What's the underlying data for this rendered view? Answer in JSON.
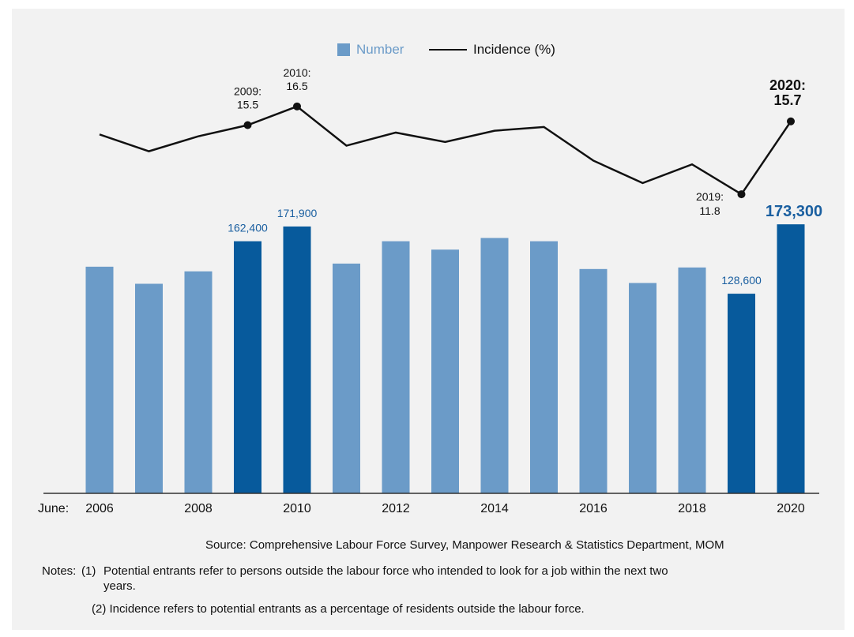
{
  "chart_data": {
    "type": "bar+line",
    "axis_prefix": "June:",
    "categories": [
      "2006",
      "2007",
      "2008",
      "2009",
      "2010",
      "2011",
      "2012",
      "2013",
      "2014",
      "2015",
      "2016",
      "2017",
      "2018",
      "2019",
      "2020"
    ],
    "tick_labels": [
      "2006",
      "",
      "2008",
      "",
      "2010",
      "",
      "2012",
      "",
      "2014",
      "",
      "2016",
      "",
      "2018",
      "",
      "2020"
    ],
    "series": [
      {
        "name": "Number",
        "type": "bar",
        "values": [
          146000,
          135000,
          143000,
          162400,
          171900,
          148000,
          162400,
          157000,
          164500,
          162400,
          144500,
          135500,
          145500,
          128600,
          173300
        ],
        "highlighted": [
          false,
          false,
          false,
          true,
          true,
          false,
          false,
          false,
          false,
          false,
          false,
          false,
          false,
          true,
          true
        ],
        "labels": [
          "",
          "",
          "",
          "162,400",
          "171,900",
          "",
          "",
          "",
          "",
          "",
          "",
          "",
          "",
          "128,600",
          "173,300"
        ]
      },
      {
        "name": "Incidence (%)",
        "type": "line",
        "values": [
          15.0,
          14.1,
          14.9,
          15.5,
          16.5,
          14.4,
          15.1,
          14.6,
          15.2,
          15.4,
          13.6,
          12.4,
          13.4,
          11.8,
          15.7
        ],
        "marked": [
          false,
          false,
          false,
          true,
          true,
          false,
          false,
          false,
          false,
          false,
          false,
          false,
          false,
          true,
          true
        ],
        "labels": [
          [],
          [],
          [],
          [
            "2009:",
            "15.5"
          ],
          [
            "2010:",
            "16.5"
          ],
          [],
          [],
          [],
          [],
          [],
          [],
          [],
          [],
          [
            "2019:",
            "11.8"
          ],
          [
            "2020:",
            "15.7"
          ]
        ]
      }
    ],
    "ylim_bars": [
      0,
      180000
    ],
    "ylim_line": [
      11,
      17
    ],
    "colors": {
      "bar_normal": "#6b9bc8",
      "bar_highlight": "#075a9c",
      "label_blue": "#1a5fa0",
      "line": "#111111",
      "axis": "#333333"
    }
  },
  "legend": {
    "number_label": "Number",
    "incidence_label": "Incidence (%)"
  },
  "source": "Source: Comprehensive Labour Force Survey, Manpower Research & Statistics Department, MOM",
  "notes": {
    "prefix": "Notes:",
    "note1_num": "(1)",
    "note1_line1": "Potential entrants refer to persons outside the labour force who intended to look for a job within the next two",
    "note1_line2": "years.",
    "note2": "(2)  Incidence refers to potential entrants as a percentage of residents outside the labour force."
  }
}
